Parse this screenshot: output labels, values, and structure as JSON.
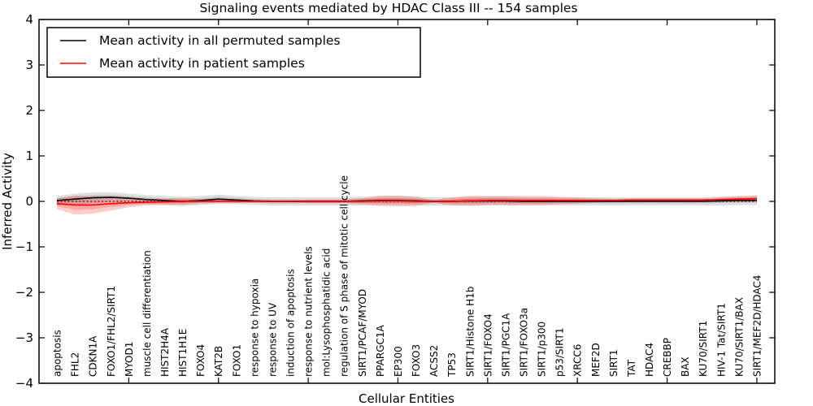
{
  "title": "Signaling events mediated by HDAC Class III -- 154 samples",
  "legend": {
    "position": "upper left",
    "items": [
      {
        "label": "Mean activity in all permuted samples",
        "color": "#000000"
      },
      {
        "label": "Mean activity in patient samples",
        "color": "#ff0000"
      }
    ]
  },
  "chart_data": {
    "type": "line",
    "title": "Signaling events mediated by HDAC Class III -- 154 samples",
    "xlabel": "Cellular Entities",
    "ylabel": "Inferred Activity",
    "ylim": [
      -4,
      4
    ],
    "yticks": [
      -4,
      -3,
      -2,
      -1,
      0,
      1,
      2,
      3,
      4
    ],
    "xtick_step": 5,
    "grid": false,
    "zero_line": {
      "style": "dotted",
      "color": "#000000"
    },
    "categories": [
      "apoptosis",
      "FHL2",
      "CDKN1A",
      "FOXO1/FHL2/SIRT1",
      "MYOD1",
      "muscle cell differentiation",
      "HIST2H4A",
      "HIST1H1E",
      "FOXO4",
      "KAT2B",
      "FOXO1",
      "response to hypoxia",
      "response to UV",
      "induction of apoptosis",
      "response to nutrient levels",
      "mol:Lysophosphatidic acid",
      "regulation of S phase of mitotic cell cycle",
      "SIRT1/PCAF/MYOD",
      "PPARGC1A",
      "EP300",
      "FOXO3",
      "ACSS2",
      "TP53",
      "SIRT1/Histone H1b",
      "SIRT1/FOXO4",
      "SIRT1/PGC1A",
      "SIRT1/FOXO3a",
      "SIRT1/p300",
      "p53/SIRT1",
      "XRCC6",
      "MEF2D",
      "SIRT1",
      "TAT",
      "HDAC4",
      "CREBBP",
      "BAX",
      "KU70/SIRT1",
      "HIV-1 Tat/SIRT1",
      "KU70/SIRT1/BAX",
      "SIRT1/MEF2D/HDAC4"
    ],
    "series": [
      {
        "name": "Mean activity in all permuted samples",
        "color": "#000000",
        "values": [
          0.02,
          0.05,
          0.08,
          0.09,
          0.07,
          0.04,
          0.02,
          0.0,
          0.02,
          0.05,
          0.03,
          0.01,
          0.0,
          0.0,
          0.0,
          0.0,
          0.0,
          0.01,
          0.02,
          0.02,
          0.01,
          0.0,
          0.0,
          0.01,
          0.01,
          0.01,
          0.0,
          0.0,
          0.0,
          0.0,
          0.0,
          0.0,
          0.0,
          0.0,
          0.0,
          0.0,
          0.0,
          0.01,
          0.02,
          0.02
        ],
        "band_half_widths": [
          0.1,
          0.12,
          0.12,
          0.11,
          0.1,
          0.1,
          0.1,
          0.1,
          0.1,
          0.1,
          0.09,
          0.09,
          0.09,
          0.09,
          0.09,
          0.09,
          0.09,
          0.1,
          0.1,
          0.1,
          0.1,
          0.09,
          0.09,
          0.1,
          0.1,
          0.1,
          0.09,
          0.09,
          0.09,
          0.09,
          0.09,
          0.09,
          0.09,
          0.09,
          0.09,
          0.09,
          0.09,
          0.1,
          0.1,
          0.1
        ],
        "band_color": "#000000",
        "band_opacity": 0.12
      },
      {
        "name": "Mean activity in patient samples",
        "color": "#ff0000",
        "values": [
          -0.05,
          -0.08,
          -0.08,
          -0.05,
          -0.03,
          -0.02,
          -0.01,
          0.0,
          0.0,
          0.0,
          0.0,
          0.0,
          0.0,
          0.0,
          0.0,
          0.0,
          0.0,
          0.0,
          0.01,
          0.01,
          0.0,
          0.0,
          0.0,
          0.01,
          0.02,
          0.02,
          0.02,
          0.02,
          0.02,
          0.02,
          0.02,
          0.02,
          0.03,
          0.03,
          0.03,
          0.03,
          0.03,
          0.04,
          0.05,
          0.06
        ],
        "band_half_widths": [
          0.12,
          0.21,
          0.19,
          0.15,
          0.1,
          0.07,
          0.07,
          0.08,
          0.05,
          0.04,
          0.04,
          0.03,
          0.03,
          0.03,
          0.04,
          0.04,
          0.04,
          0.07,
          0.11,
          0.12,
          0.1,
          0.03,
          0.09,
          0.11,
          0.1,
          0.1,
          0.1,
          0.1,
          0.08,
          0.07,
          0.05,
          0.04,
          0.04,
          0.04,
          0.04,
          0.04,
          0.04,
          0.05,
          0.06,
          0.07
        ],
        "band_color": "#ff0000",
        "band_opacity": 0.2
      }
    ]
  }
}
